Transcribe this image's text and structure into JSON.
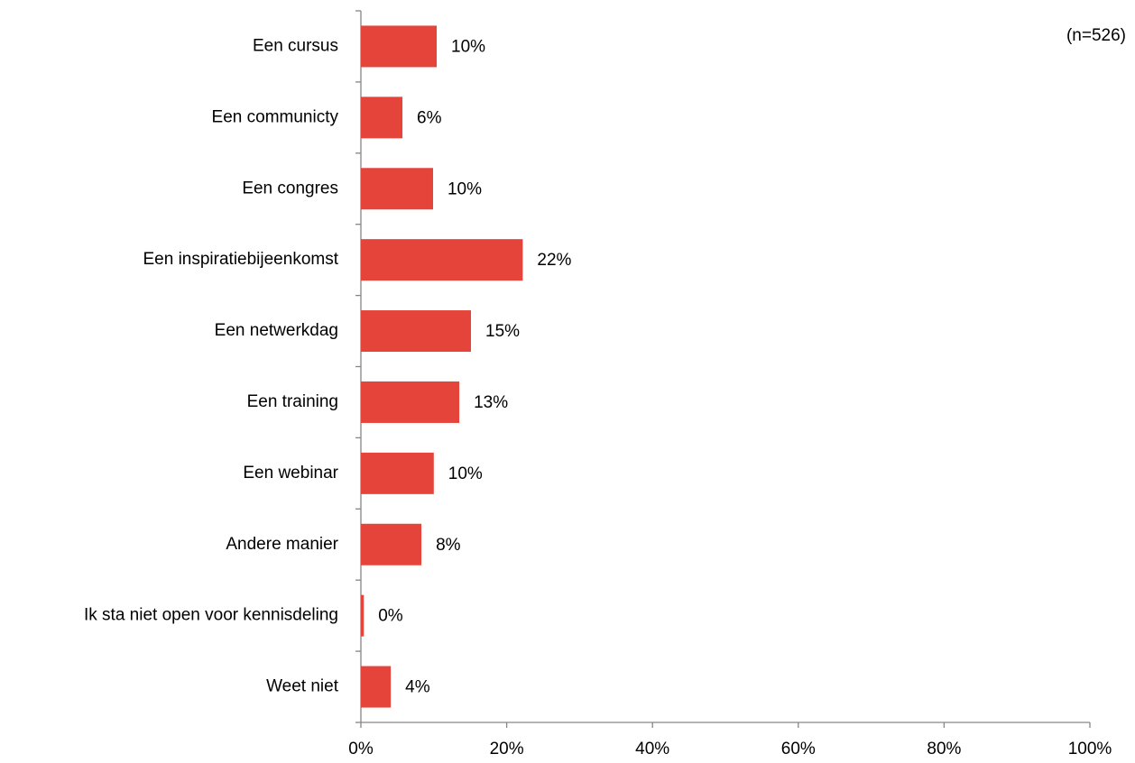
{
  "chart_data": {
    "type": "barh",
    "annotation": "(n=526)",
    "categories": [
      "Een cursus",
      "Een communicty",
      "Een congres",
      "Een inspiratiebijeenkomst",
      "Een netwerkdag",
      "Een training",
      "Een webinar",
      "Andere manier",
      "Ik sta niet open voor kennisdeling",
      "Weet niet"
    ],
    "values": [
      10.4,
      5.7,
      9.9,
      22.2,
      15.1,
      13.5,
      10.0,
      8.3,
      0.4,
      4.1
    ],
    "value_labels": [
      "10%",
      "6%",
      "10%",
      "22%",
      "15%",
      "13%",
      "10%",
      "8%",
      "0%",
      "4%"
    ],
    "color": "#e5443a",
    "xlim": [
      0,
      100
    ],
    "xticks": [
      {
        "value": 0,
        "label": "0%"
      },
      {
        "value": 20,
        "label": "20%"
      },
      {
        "value": 40,
        "label": "40%"
      },
      {
        "value": 60,
        "label": "60%"
      },
      {
        "value": 80,
        "label": "80%"
      },
      {
        "value": 100,
        "label": "100%"
      }
    ],
    "grid": false
  }
}
